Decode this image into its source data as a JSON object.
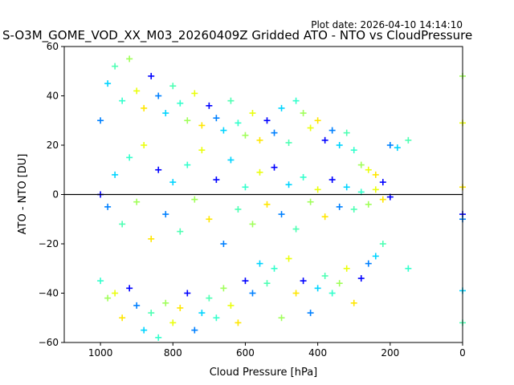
{
  "plot_date_text": "Plot date: 2026-04-10 14:14:10",
  "chart_data": {
    "type": "scatter",
    "title": "S-O3M_GOME_VOD_XX_M03_20260409Z Gridded ATO - NTO vs CloudPressure",
    "xlabel": "Cloud Pressure [hPa]",
    "ylabel": "ATO - NTO [DU]",
    "xlim": [
      1100,
      0
    ],
    "ylim": [
      -60,
      60
    ],
    "xticks": [
      1000,
      800,
      600,
      400,
      200,
      0
    ],
    "yticks": [
      -60,
      -40,
      -20,
      0,
      20,
      40,
      60
    ],
    "reference_line": {
      "y": 0,
      "color": "#000000"
    },
    "marker": "+",
    "grid": false,
    "legend": "none",
    "colors": [
      "#0000ff",
      "#0080ff",
      "#00d4ff",
      "#4dffb3",
      "#33ffcc",
      "#a0ff5a",
      "#eaff0d",
      "#ffe600"
    ],
    "series": [
      {
        "color_group": "dense-core",
        "points": [
          [
            1000,
            0
          ],
          [
            980,
            -5
          ],
          [
            960,
            8
          ],
          [
            940,
            -12
          ],
          [
            920,
            15
          ],
          [
            900,
            -3
          ],
          [
            880,
            20
          ],
          [
            860,
            -18
          ],
          [
            840,
            10
          ],
          [
            820,
            -8
          ],
          [
            800,
            5
          ],
          [
            780,
            -15
          ],
          [
            760,
            12
          ],
          [
            740,
            -2
          ],
          [
            720,
            18
          ],
          [
            700,
            -10
          ],
          [
            680,
            6
          ],
          [
            660,
            -20
          ],
          [
            640,
            14
          ],
          [
            620,
            -6
          ],
          [
            600,
            3
          ],
          [
            580,
            -12
          ],
          [
            560,
            9
          ],
          [
            540,
            -4
          ],
          [
            520,
            11
          ],
          [
            500,
            -8
          ],
          [
            480,
            4
          ],
          [
            460,
            -14
          ],
          [
            440,
            7
          ],
          [
            420,
            -3
          ],
          [
            400,
            2
          ],
          [
            380,
            -9
          ],
          [
            360,
            6
          ],
          [
            340,
            -5
          ],
          [
            320,
            3
          ],
          [
            300,
            -6
          ],
          [
            280,
            1
          ],
          [
            260,
            -4
          ],
          [
            240,
            2
          ],
          [
            220,
            -2
          ],
          [
            200,
            -1
          ]
        ]
      },
      {
        "color_group": "upper-cloud",
        "points": [
          [
            1000,
            30
          ],
          [
            980,
            45
          ],
          [
            960,
            52
          ],
          [
            940,
            38
          ],
          [
            920,
            55
          ],
          [
            900,
            42
          ],
          [
            880,
            35
          ],
          [
            860,
            48
          ],
          [
            840,
            40
          ],
          [
            820,
            33
          ],
          [
            800,
            44
          ],
          [
            780,
            37
          ],
          [
            760,
            30
          ],
          [
            740,
            41
          ],
          [
            720,
            28
          ],
          [
            700,
            36
          ],
          [
            680,
            31
          ],
          [
            660,
            26
          ],
          [
            640,
            38
          ],
          [
            620,
            29
          ],
          [
            600,
            24
          ],
          [
            580,
            33
          ],
          [
            560,
            22
          ],
          [
            540,
            30
          ],
          [
            520,
            25
          ],
          [
            500,
            35
          ],
          [
            480,
            21
          ],
          [
            460,
            38
          ],
          [
            440,
            33
          ],
          [
            420,
            27
          ],
          [
            400,
            30
          ],
          [
            380,
            22
          ],
          [
            360,
            26
          ],
          [
            340,
            20
          ],
          [
            320,
            25
          ],
          [
            300,
            18
          ],
          [
            280,
            12
          ],
          [
            260,
            10
          ],
          [
            240,
            8
          ],
          [
            220,
            5
          ],
          [
            200,
            20
          ],
          [
            180,
            19
          ],
          [
            150,
            22
          ]
        ]
      },
      {
        "color_group": "lower-cloud",
        "points": [
          [
            1000,
            -35
          ],
          [
            980,
            -42
          ],
          [
            960,
            -40
          ],
          [
            940,
            -50
          ],
          [
            920,
            -38
          ],
          [
            900,
            -45
          ],
          [
            880,
            -55
          ],
          [
            860,
            -48
          ],
          [
            840,
            -58
          ],
          [
            820,
            -44
          ],
          [
            800,
            -52
          ],
          [
            780,
            -46
          ],
          [
            760,
            -40
          ],
          [
            740,
            -55
          ],
          [
            720,
            -48
          ],
          [
            700,
            -42
          ],
          [
            680,
            -50
          ],
          [
            660,
            -38
          ],
          [
            640,
            -45
          ],
          [
            620,
            -52
          ],
          [
            600,
            -35
          ],
          [
            580,
            -40
          ],
          [
            560,
            -28
          ],
          [
            540,
            -36
          ],
          [
            520,
            -30
          ],
          [
            500,
            -50
          ],
          [
            480,
            -26
          ],
          [
            460,
            -40
          ],
          [
            440,
            -35
          ],
          [
            420,
            -48
          ],
          [
            400,
            -38
          ],
          [
            380,
            -33
          ],
          [
            360,
            -40
          ],
          [
            340,
            -36
          ],
          [
            320,
            -30
          ],
          [
            300,
            -44
          ],
          [
            280,
            -34
          ],
          [
            260,
            -28
          ],
          [
            240,
            -25
          ],
          [
            220,
            -20
          ],
          [
            150,
            -30
          ]
        ]
      },
      {
        "color_group": "edge-at-zero-pressure",
        "points": [
          [
            0,
            48
          ],
          [
            0,
            29
          ],
          [
            0,
            3
          ],
          [
            0,
            -8
          ],
          [
            0,
            -10
          ],
          [
            0,
            -39
          ],
          [
            0,
            -52
          ]
        ]
      }
    ]
  }
}
